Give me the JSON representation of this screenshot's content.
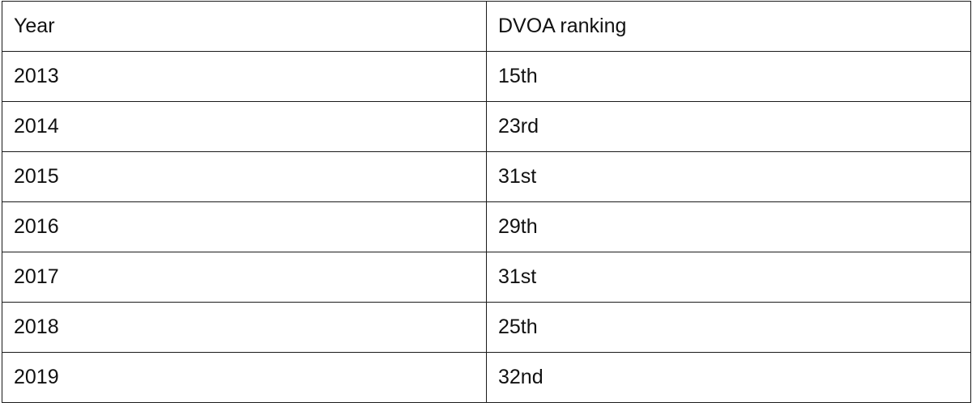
{
  "table": {
    "headers": [
      "Year",
      "DVOA ranking"
    ],
    "rows": [
      [
        "2013",
        "15th"
      ],
      [
        "2014",
        "23rd"
      ],
      [
        "2015",
        "31st"
      ],
      [
        "2016",
        "29th"
      ],
      [
        "2017",
        "31st"
      ],
      [
        "2018",
        "25th"
      ],
      [
        "2019",
        "32nd"
      ]
    ]
  }
}
